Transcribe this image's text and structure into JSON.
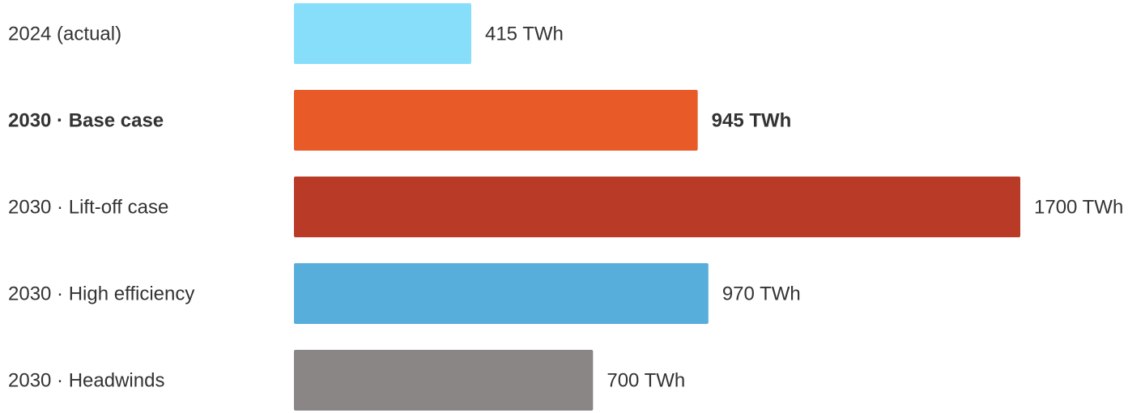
{
  "chart_data": {
    "type": "bar",
    "orientation": "horizontal",
    "categories": [
      "2024 (actual)",
      "2030 · Base case",
      "2030 · Lift-off case",
      "2030 · High efficiency",
      "2030 · Headwinds"
    ],
    "values": [
      415,
      945,
      1700,
      970,
      700
    ],
    "value_labels": [
      "415 TWh",
      "945 TWh",
      "1700 TWh",
      "970 TWh",
      "700 TWh"
    ],
    "unit": "TWh",
    "colors": [
      "#87DEFB",
      "#E85A28",
      "#B93A27",
      "#58AEDB",
      "#8A8685"
    ],
    "highlight_index": 1,
    "highlight_color": "#E85A28",
    "text_color": "#333333",
    "xlim": [
      0,
      1700
    ],
    "grid": false,
    "legend": "none",
    "title": "",
    "xlabel": "",
    "ylabel": ""
  }
}
